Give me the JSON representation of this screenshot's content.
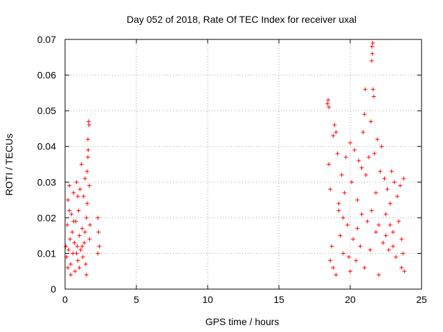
{
  "chart_data": {
    "type": "scatter",
    "title": "Day 052 of 2018, Rate Of TEC Index for receiver uxal",
    "xlabel": "GPS time / hours",
    "ylabel": "ROTI / TECUs",
    "xlim": [
      0,
      25
    ],
    "ylim": [
      0,
      0.07
    ],
    "xticks": [
      0,
      5,
      10,
      15,
      20,
      25
    ],
    "yticks": [
      0,
      0.01,
      0.02,
      0.03,
      0.04,
      0.05,
      0.06,
      0.07
    ],
    "xtick_labels": [
      "0",
      "5",
      "10",
      "15",
      "20",
      "25"
    ],
    "ytick_labels": [
      "0",
      "0.01",
      "0.02",
      "0.03",
      "0.04",
      "0.05",
      "0.06",
      "0.07"
    ],
    "grid": true,
    "marker": "+",
    "color": "#ff0000",
    "series": [
      {
        "name": "ROTI",
        "points": [
          [
            0.05,
            0.012
          ],
          [
            0.1,
            0.009
          ],
          [
            0.15,
            0.018
          ],
          [
            0.2,
            0.025
          ],
          [
            0.25,
            0.011
          ],
          [
            0.3,
            0.029
          ],
          [
            0.35,
            0.014
          ],
          [
            0.4,
            0.007
          ],
          [
            0.45,
            0.021
          ],
          [
            0.5,
            0.016
          ],
          [
            0.55,
            0.01
          ],
          [
            0.6,
            0.027
          ],
          [
            0.65,
            0.013
          ],
          [
            0.7,
            0.005
          ],
          [
            0.75,
            0.019
          ],
          [
            0.8,
            0.03
          ],
          [
            0.85,
            0.012
          ],
          [
            0.9,
            0.008
          ],
          [
            0.95,
            0.022
          ],
          [
            1.0,
            0.015
          ],
          [
            1.05,
            0.028
          ],
          [
            1.1,
            0.011
          ],
          [
            1.15,
            0.035
          ],
          [
            1.2,
            0.017
          ],
          [
            1.25,
            0.009
          ],
          [
            1.3,
            0.026
          ],
          [
            1.35,
            0.013
          ],
          [
            1.4,
            0.031
          ],
          [
            1.45,
            0.007
          ],
          [
            1.5,
            0.02
          ],
          [
            1.55,
            0.024
          ],
          [
            1.6,
            0.042
          ],
          [
            1.62,
            0.039
          ],
          [
            1.65,
            0.047
          ],
          [
            1.68,
            0.046
          ],
          [
            1.7,
            0.029
          ],
          [
            1.72,
            0.014
          ],
          [
            1.75,
            0.018
          ],
          [
            1.6,
            0.037
          ],
          [
            1.55,
            0.033
          ],
          [
            0.3,
            0.022
          ],
          [
            0.6,
            0.019
          ],
          [
            0.9,
            0.026
          ],
          [
            1.2,
            0.012
          ],
          [
            1.4,
            0.016
          ],
          [
            0.2,
            0.006
          ],
          [
            0.4,
            0.004
          ],
          [
            1.0,
            0.006
          ],
          [
            1.5,
            0.004
          ],
          [
            0.8,
            0.01
          ],
          [
            2.3,
            0.02
          ],
          [
            2.35,
            0.016
          ],
          [
            2.4,
            0.012
          ],
          [
            2.3,
            0.01
          ],
          [
            18.4,
            0.052
          ],
          [
            18.45,
            0.053
          ],
          [
            18.5,
            0.051
          ],
          [
            18.5,
            0.035
          ],
          [
            18.6,
            0.028
          ],
          [
            18.7,
            0.012
          ],
          [
            18.8,
            0.043
          ],
          [
            18.9,
            0.046
          ],
          [
            19.0,
            0.044
          ],
          [
            19.1,
            0.038
          ],
          [
            19.2,
            0.022
          ],
          [
            19.3,
            0.015
          ],
          [
            19.4,
            0.032
          ],
          [
            19.5,
            0.01
          ],
          [
            19.6,
            0.027
          ],
          [
            19.7,
            0.037
          ],
          [
            19.8,
            0.018
          ],
          [
            19.9,
            0.009
          ],
          [
            20.0,
            0.041
          ],
          [
            20.1,
            0.03
          ],
          [
            20.2,
            0.014
          ],
          [
            20.3,
            0.039
          ],
          [
            20.4,
            0.008
          ],
          [
            20.5,
            0.025
          ],
          [
            20.6,
            0.036
          ],
          [
            20.7,
            0.012
          ],
          [
            20.8,
            0.034
          ],
          [
            20.9,
            0.044
          ],
          [
            21.0,
            0.049
          ],
          [
            21.05,
            0.056
          ],
          [
            21.1,
            0.032
          ],
          [
            21.2,
            0.019
          ],
          [
            21.3,
            0.037
          ],
          [
            21.4,
            0.011
          ],
          [
            21.45,
            0.047
          ],
          [
            21.5,
            0.064
          ],
          [
            21.52,
            0.068
          ],
          [
            21.55,
            0.066
          ],
          [
            21.58,
            0.069
          ],
          [
            21.6,
            0.056
          ],
          [
            21.65,
            0.054
          ],
          [
            21.7,
            0.038
          ],
          [
            21.8,
            0.027
          ],
          [
            21.9,
            0.042
          ],
          [
            22.0,
            0.018
          ],
          [
            22.1,
            0.033
          ],
          [
            22.2,
            0.04
          ],
          [
            22.3,
            0.013
          ],
          [
            22.4,
            0.031
          ],
          [
            22.5,
            0.021
          ],
          [
            22.6,
            0.028
          ],
          [
            22.7,
            0.011
          ],
          [
            22.8,
            0.024
          ],
          [
            22.9,
            0.033
          ],
          [
            23.0,
            0.016
          ],
          [
            23.1,
            0.03
          ],
          [
            23.2,
            0.009
          ],
          [
            23.3,
            0.026
          ],
          [
            23.4,
            0.019
          ],
          [
            23.5,
            0.029
          ],
          [
            23.6,
            0.014
          ],
          [
            23.7,
            0.01
          ],
          [
            23.75,
            0.031
          ],
          [
            23.8,
            0.005
          ],
          [
            23.6,
            0.006
          ],
          [
            19.0,
            0.004
          ],
          [
            20.0,
            0.005
          ],
          [
            21.0,
            0.006
          ],
          [
            22.0,
            0.004
          ],
          [
            18.8,
            0.006
          ],
          [
            19.5,
            0.02
          ],
          [
            20.5,
            0.017
          ],
          [
            21.5,
            0.022
          ],
          [
            22.5,
            0.015
          ],
          [
            23.0,
            0.012
          ],
          [
            18.6,
            0.008
          ],
          [
            19.2,
            0.024
          ],
          [
            20.8,
            0.021
          ],
          [
            21.8,
            0.016
          ],
          [
            22.8,
            0.018
          ]
        ]
      }
    ]
  }
}
